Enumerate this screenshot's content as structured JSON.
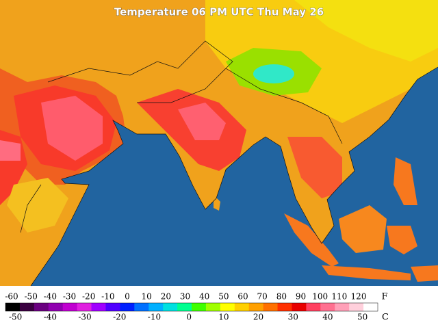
{
  "map": {
    "title": "Temperature 06 PM UTC Thu May 26",
    "legend": {
      "fahrenheit_unit": "F",
      "celsius_unit": "C",
      "fahrenheit_ticks": [
        -60,
        -50,
        -40,
        -30,
        -20,
        -10,
        0,
        10,
        20,
        30,
        40,
        50,
        60,
        70,
        80,
        90,
        100,
        110,
        120
      ],
      "celsius_ticks": [
        -50,
        -40,
        -30,
        -20,
        -10,
        0,
        10,
        20,
        30,
        40,
        50
      ],
      "colors": [
        "#000000",
        "#3a0040",
        "#6a0080",
        "#9000b0",
        "#c000d0",
        "#e020e0",
        "#a000ff",
        "#5000ff",
        "#0020ff",
        "#0070ff",
        "#00b0ff",
        "#00e0e0",
        "#00ff90",
        "#40ff00",
        "#a0ff00",
        "#ffff00",
        "#ffd000",
        "#ffa000",
        "#ff7000",
        "#ff3000",
        "#e80000",
        "#ff4060",
        "#ff7090",
        "#ffa0b8",
        "#ffd0dc",
        "#ffffff"
      ]
    }
  }
}
